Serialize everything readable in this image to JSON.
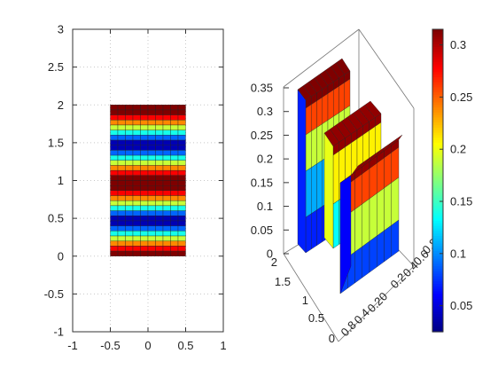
{
  "chart_data": [
    {
      "type": "heatmap",
      "title": "",
      "xlabel": "",
      "ylabel": "",
      "xlim": [
        -1,
        1
      ],
      "ylim": [
        -1,
        3
      ],
      "x_ticks": [
        "-1",
        "-0.5",
        "0",
        "0.5",
        "1"
      ],
      "y_ticks": [
        "-1",
        "-0.5",
        "0",
        "0.5",
        "1",
        "1.5",
        "2",
        "2.5",
        "3"
      ],
      "grid": true,
      "x_range_data": [
        -0.5,
        0.5
      ],
      "y_range_data": [
        0,
        2
      ],
      "columns": 10,
      "row_values": [
        0.32,
        0.32,
        0.28,
        0.24,
        0.19,
        0.14,
        0.09,
        0.04,
        0.04,
        0.09,
        0.14,
        0.19,
        0.24,
        0.28,
        0.32,
        0.32,
        0.32,
        0.28,
        0.24,
        0.19,
        0.14,
        0.09,
        0.04,
        0.04,
        0.09,
        0.14,
        0.19,
        0.24,
        0.28,
        0.32
      ],
      "row_values_order": "top-to-bottom"
    },
    {
      "type": "surface",
      "title": "",
      "z_ticks": [
        "0",
        "0.05",
        "0.1",
        "0.15",
        "0.2",
        "0.25",
        "0.3",
        "0.35"
      ],
      "y_ticks": [
        "0",
        "0.5",
        "1",
        "1.5",
        "2"
      ],
      "x_ticks": [
        "0.8",
        "0.4",
        "0.2",
        "0",
        "0.2",
        "0.4",
        "0.6",
        "0.8"
      ],
      "zlim": [
        0,
        0.35
      ],
      "description": "three slabs with varying heights"
    }
  ],
  "colorbar": {
    "ticks": [
      "0.05",
      "0.1",
      "0.15",
      "0.2",
      "0.25",
      "0.3"
    ],
    "range": [
      0.025,
      0.315
    ]
  },
  "colors": {
    "jet": [
      "#00007f",
      "#0000ff",
      "#007fff",
      "#00ffff",
      "#7fff7f",
      "#ffff00",
      "#ff7f00",
      "#ff0000",
      "#7f0000"
    ]
  }
}
